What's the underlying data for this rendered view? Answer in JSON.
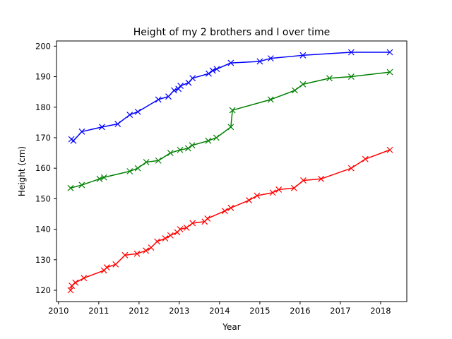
{
  "chart_data": {
    "type": "line",
    "title": "Height of my 2 brothers and I over time",
    "xlabel": "Year",
    "ylabel": "Height (cm)",
    "xlim": [
      2009.95,
      2018.65
    ],
    "ylim": [
      116.3,
      201.7
    ],
    "xticks": [
      2010,
      2011,
      2012,
      2013,
      2014,
      2015,
      2016,
      2017,
      2018
    ],
    "yticks": [
      120,
      130,
      140,
      150,
      160,
      170,
      180,
      190,
      200
    ],
    "marker": "x",
    "grid": false,
    "series": [
      {
        "color": "#0000ff",
        "points": [
          [
            2010.32,
            169.5
          ],
          [
            2010.37,
            169.0
          ],
          [
            2010.58,
            172.0
          ],
          [
            2011.08,
            173.5
          ],
          [
            2011.47,
            174.5
          ],
          [
            2011.77,
            177.5
          ],
          [
            2011.97,
            178.5
          ],
          [
            2012.48,
            182.5
          ],
          [
            2012.73,
            183.5
          ],
          [
            2012.87,
            185.5
          ],
          [
            2012.98,
            186.0
          ],
          [
            2013.03,
            187.0
          ],
          [
            2013.23,
            188.0
          ],
          [
            2013.33,
            189.5
          ],
          [
            2013.73,
            191.0
          ],
          [
            2013.83,
            192.0
          ],
          [
            2013.93,
            192.5
          ],
          [
            2014.28,
            194.5
          ],
          [
            2015.0,
            195.0
          ],
          [
            2015.27,
            196.0
          ],
          [
            2016.07,
            197.0
          ],
          [
            2017.27,
            198.0
          ],
          [
            2018.23,
            198.0
          ]
        ]
      },
      {
        "color": "#008000",
        "points": [
          [
            2010.3,
            153.5
          ],
          [
            2010.58,
            154.5
          ],
          [
            2011.02,
            156.5
          ],
          [
            2011.13,
            157.0
          ],
          [
            2011.77,
            159.0
          ],
          [
            2011.97,
            160.0
          ],
          [
            2012.18,
            162.0
          ],
          [
            2012.48,
            162.5
          ],
          [
            2012.78,
            165.0
          ],
          [
            2013.02,
            166.0
          ],
          [
            2013.22,
            166.5
          ],
          [
            2013.32,
            167.5
          ],
          [
            2013.72,
            169.0
          ],
          [
            2013.92,
            170.0
          ],
          [
            2014.28,
            173.5
          ],
          [
            2014.32,
            179.0
          ],
          [
            2015.27,
            182.5
          ],
          [
            2015.87,
            185.5
          ],
          [
            2016.07,
            187.5
          ],
          [
            2016.73,
            189.5
          ],
          [
            2017.27,
            190.0
          ],
          [
            2018.23,
            191.5
          ]
        ]
      },
      {
        "color": "#ff0000",
        "points": [
          [
            2010.3,
            120.0
          ],
          [
            2010.33,
            121.5
          ],
          [
            2010.42,
            122.5
          ],
          [
            2010.63,
            124.0
          ],
          [
            2011.13,
            126.5
          ],
          [
            2011.2,
            127.5
          ],
          [
            2011.42,
            128.5
          ],
          [
            2011.65,
            131.5
          ],
          [
            2011.95,
            132.0
          ],
          [
            2012.17,
            133.0
          ],
          [
            2012.3,
            134.0
          ],
          [
            2012.45,
            136.0
          ],
          [
            2012.65,
            137.0
          ],
          [
            2012.78,
            138.0
          ],
          [
            2012.95,
            139.0
          ],
          [
            2013.02,
            140.0
          ],
          [
            2013.18,
            140.5
          ],
          [
            2013.33,
            142.0
          ],
          [
            2013.63,
            142.5
          ],
          [
            2013.7,
            143.5
          ],
          [
            2014.13,
            146.0
          ],
          [
            2014.28,
            147.0
          ],
          [
            2014.73,
            149.5
          ],
          [
            2014.93,
            151.0
          ],
          [
            2015.32,
            152.0
          ],
          [
            2015.47,
            153.0
          ],
          [
            2015.85,
            153.5
          ],
          [
            2016.08,
            156.0
          ],
          [
            2016.52,
            156.5
          ],
          [
            2017.27,
            160.0
          ],
          [
            2017.62,
            163.0
          ],
          [
            2018.23,
            166.0
          ]
        ]
      }
    ]
  }
}
